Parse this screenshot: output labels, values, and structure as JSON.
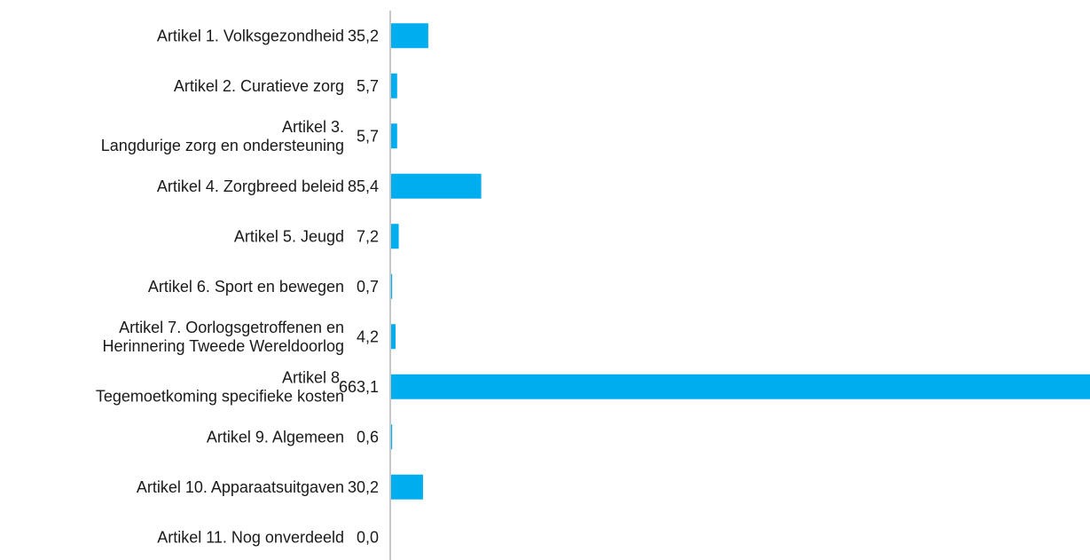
{
  "chart_data": {
    "type": "bar",
    "orientation": "horizontal",
    "categories": [
      [
        "Artikel 1. Volksgezondheid"
      ],
      [
        "Artikel 2. Curatieve zorg"
      ],
      [
        "Artikel 3.",
        "Langdurige zorg en ondersteuning"
      ],
      [
        "Artikel 4. Zorgbreed beleid"
      ],
      [
        "Artikel 5. Jeugd"
      ],
      [
        "Artikel 6. Sport en bewegen"
      ],
      [
        "Artikel 7. Oorlogsgetroffenen en",
        "Herinnering Tweede Wereldoorlog"
      ],
      [
        "Artikel 8.",
        "Tegemoetkoming specifieke kosten"
      ],
      [
        "Artikel 9. Algemeen"
      ],
      [
        "Artikel 10. Apparaatsuitgaven"
      ],
      [
        "Artikel 11. Nog onverdeeld"
      ]
    ],
    "values": [
      35.2,
      5.7,
      5.7,
      85.4,
      7.2,
      0.7,
      4.2,
      663.1,
      0.6,
      30.2,
      0.0
    ],
    "value_labels": [
      "35,2",
      "5,7",
      "5,7",
      "85,4",
      "7,2",
      "0,7",
      "4,2",
      "663,1",
      "0,6",
      "30,2",
      "0,0"
    ],
    "bar_color": "#00aeef",
    "axis_color": "#8c8c8c",
    "xlim": [
      0,
      663.1
    ],
    "grid": false,
    "legend": "none"
  }
}
